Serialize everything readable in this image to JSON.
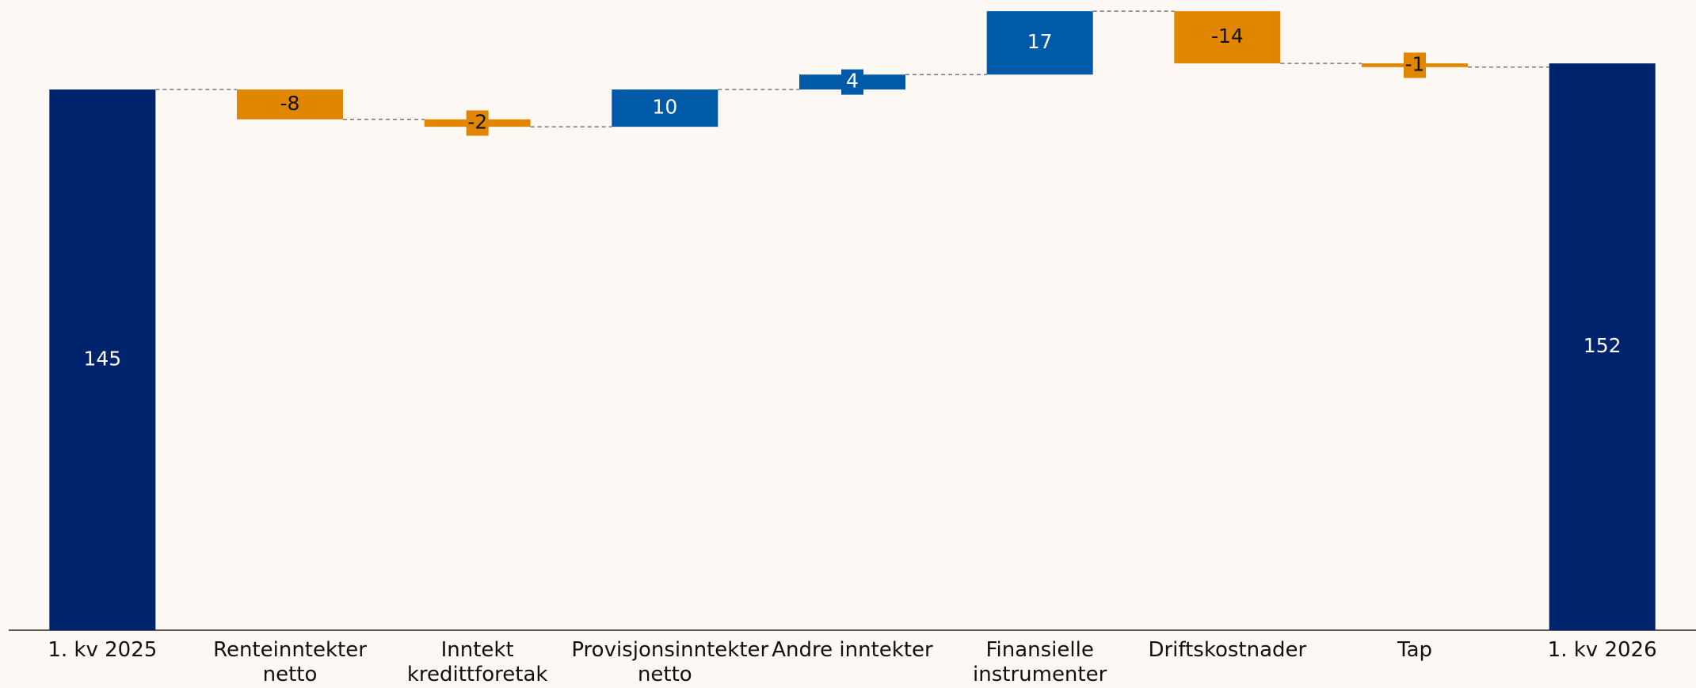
{
  "chart_data": {
    "type": "waterfall",
    "categories": [
      "1. kv 2025",
      "Renteinntekter netto",
      "Inntekt kredittforetak",
      "Provisjonsinntekter netto",
      "Andre inntekter",
      "Finansielle instrumenter",
      "Driftskostnader",
      "Tap",
      "1. kv 2026"
    ],
    "values": [
      145,
      -8,
      -2,
      10,
      4,
      17,
      -14,
      -1,
      152
    ],
    "measures": [
      "total",
      "relative",
      "relative",
      "relative",
      "relative",
      "relative",
      "relative",
      "relative",
      "total"
    ],
    "colors": {
      "total": "#00236e",
      "increase": "#005aa8",
      "decrease": "#e08600"
    },
    "ylim": [
      0,
      169
    ]
  }
}
